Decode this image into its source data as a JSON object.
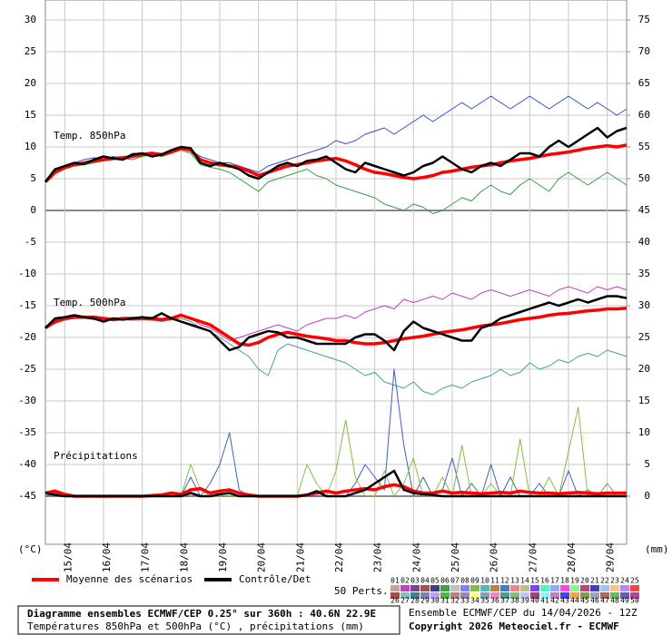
{
  "chart_data": {
    "type": "line",
    "annotations": [
      "Temp. 850hPa",
      "Temp. 500hPa",
      "Précipitations"
    ],
    "y_unit": "(°C)",
    "y2_unit": "(mm)",
    "categories": [
      null,
      null,
      "15/04",
      null,
      null,
      null,
      "16/04",
      null,
      null,
      null,
      "17/04",
      null,
      null,
      null,
      "18/04",
      null,
      null,
      null,
      "19/04",
      null,
      null,
      null,
      "20/04",
      null,
      null,
      null,
      "21/04",
      null,
      null,
      null,
      "22/04",
      null,
      null,
      null,
      "23/04",
      null,
      null,
      null,
      "24/04",
      null,
      null,
      null,
      "25/04",
      null,
      null,
      null,
      "26/04",
      null,
      null,
      null,
      "27/04",
      null,
      null,
      null,
      "28/04",
      null,
      null,
      null,
      "29/04",
      null,
      null
    ],
    "ylim": [
      -52.5,
      32.5
    ],
    "yticks": [
      -45,
      -40,
      -35,
      -30,
      -25,
      -20,
      -15,
      -10,
      -5,
      0,
      5,
      10,
      15,
      20,
      25,
      30
    ],
    "y2lim": [
      -7.5,
      77.5
    ],
    "y2ticks": [
      0,
      5,
      10,
      15,
      20,
      25,
      30,
      35,
      40,
      45,
      50,
      55,
      60,
      65,
      70,
      75
    ],
    "grid": true,
    "series": [
      {
        "color": "#3050d0",
        "values": [
          4.5,
          6.2,
          7,
          7.5,
          8,
          8.3,
          8,
          8.5,
          8.2,
          9,
          9,
          9.2,
          8.5,
          9,
          10,
          9.5,
          8.5,
          8,
          7.5,
          7.5,
          7,
          6.5,
          6,
          7,
          7.5,
          8,
          8.5,
          9,
          9.5,
          10,
          11,
          10.5,
          11,
          12,
          12.5,
          13,
          12,
          13,
          14,
          15,
          14,
          15,
          16,
          17,
          16,
          17,
          18,
          17,
          16,
          17,
          18,
          17,
          16,
          17,
          18,
          17,
          16,
          17,
          16,
          15,
          16
        ]
      },
      {
        "color": "#30a040",
        "values": [
          4.5,
          5.8,
          6.5,
          7,
          7.2,
          7.5,
          7.8,
          8,
          8.2,
          8,
          8.5,
          8.8,
          8.5,
          9,
          9.5,
          9,
          7.2,
          6.8,
          6.5,
          6,
          5,
          4,
          3,
          4.5,
          5,
          5.5,
          6,
          6.5,
          5.5,
          5,
          4,
          3.5,
          3,
          2.5,
          2,
          1,
          0.5,
          0,
          1,
          0.5,
          -0.5,
          0,
          1,
          2,
          1.5,
          3,
          4,
          3,
          2.5,
          4,
          5,
          4,
          3,
          5,
          6,
          5,
          4,
          5,
          6,
          5,
          4
        ]
      },
      {
        "color": "#c040c0",
        "values": [
          -18.5,
          -17.2,
          -16.8,
          -16.7,
          -17,
          -16.9,
          -17.2,
          -17.1,
          -17,
          -16.8,
          -17,
          -16.9,
          -17,
          -16.8,
          -16.3,
          -17,
          -18,
          -18.5,
          -19.5,
          -20.5,
          -20,
          -19.5,
          -19,
          -18.5,
          -18,
          -18.5,
          -19,
          -18,
          -17.5,
          -17,
          -17,
          -16.5,
          -17,
          -16,
          -15.5,
          -15,
          -15.5,
          -14,
          -14.5,
          -14,
          -13.5,
          -14,
          -13,
          -13.5,
          -14,
          -13,
          -12.5,
          -13,
          -13.5,
          -13,
          -12.5,
          -13,
          -13.5,
          -12.5,
          -12,
          -12.5,
          -13,
          -12,
          -12.5,
          -12,
          -12.5
        ]
      },
      {
        "color": "#40a0a0",
        "values": [
          -18.5,
          -17.8,
          -17.3,
          -17,
          -17,
          -17.2,
          -17,
          -17.4,
          -17.2,
          -17.3,
          -17.2,
          -17.3,
          -17.5,
          -17.2,
          -17,
          -17.5,
          -18.5,
          -19,
          -20,
          -21,
          -22,
          -23,
          -25,
          -26,
          -22,
          -21,
          -21.5,
          -22,
          -22.5,
          -23,
          -23.5,
          -24,
          -25,
          -26,
          -25.5,
          -27,
          -27.5,
          -28,
          -27,
          -28.5,
          -29,
          -28,
          -27.5,
          -28,
          -27,
          -26.5,
          -26,
          -25,
          -26,
          -25.5,
          -24,
          -25,
          -24.5,
          -23.5,
          -24,
          -23,
          -22.5,
          -23,
          -22,
          -22.5,
          -23
        ]
      },
      {
        "color": "#4060c0",
        "axis": "y2",
        "values": [
          0,
          0.5,
          0,
          0,
          0,
          0,
          0,
          0,
          0,
          0,
          0,
          0,
          0,
          0,
          0,
          3,
          0,
          2,
          5,
          10,
          1,
          0,
          0,
          0,
          0,
          0,
          0,
          0,
          0,
          0,
          0,
          0,
          2,
          5,
          3,
          1,
          20,
          8,
          0,
          3,
          0,
          1,
          6,
          0,
          2,
          0,
          5,
          0,
          3,
          0,
          0,
          2,
          0,
          0,
          4,
          0,
          1,
          0,
          2,
          0,
          0
        ]
      },
      {
        "color": "#80c040",
        "axis": "y2",
        "values": [
          0.5,
          1,
          0,
          0,
          0,
          0,
          0,
          0,
          0,
          0,
          0,
          0,
          0,
          0,
          0,
          5,
          1,
          0,
          0,
          0,
          0,
          0,
          0,
          0,
          0,
          0,
          0,
          5,
          2,
          0,
          4,
          12,
          3,
          0,
          0,
          4,
          0,
          2,
          6,
          0,
          0,
          3,
          0,
          8,
          0,
          0,
          2,
          0,
          0,
          9,
          0,
          0,
          3,
          0,
          7,
          14,
          0,
          0,
          2,
          0,
          0
        ]
      },
      {
        "name": "Moyenne des scénarios",
        "color": "#ff0000",
        "width": 3.5,
        "values": [
          4.5,
          6,
          6.8,
          7.2,
          7.5,
          7.8,
          8,
          8.2,
          8.3,
          8.5,
          8.8,
          9,
          8.8,
          9.2,
          9.8,
          9.5,
          8,
          7.5,
          7.2,
          7,
          6.8,
          6.2,
          5.5,
          6,
          6.5,
          7,
          7.2,
          7.5,
          7.8,
          8,
          8.2,
          7.8,
          7.2,
          6.5,
          6,
          5.8,
          5.5,
          5.2,
          5,
          5.2,
          5.5,
          6,
          6.2,
          6.5,
          6.8,
          7,
          7.2,
          7.5,
          7.8,
          8,
          8.2,
          8.5,
          8.8,
          9,
          9.2,
          9.5,
          9.8,
          10,
          10.2,
          10,
          10.3
        ]
      },
      {
        "name": "Contrôle/Det",
        "color": "#000000",
        "width": 2.5,
        "values": [
          4.5,
          6.5,
          7,
          7.5,
          7.3,
          8,
          8.5,
          8.2,
          8,
          8.8,
          9,
          8.5,
          8.8,
          9.5,
          10,
          9.8,
          7.5,
          7,
          7.5,
          7,
          6.5,
          5.5,
          5,
          6,
          7,
          7.5,
          7,
          7.8,
          8,
          8.5,
          7.5,
          6.5,
          6,
          7.5,
          7,
          6.5,
          6,
          5.5,
          6,
          7,
          7.5,
          8.5,
          7.5,
          6.5,
          6,
          7,
          7.5,
          7,
          8,
          9,
          9,
          8.5,
          10,
          11,
          10,
          11,
          12,
          13,
          11.5,
          12.5,
          13
        ]
      },
      {
        "color": "#ff0000",
        "width": 3.5,
        "values": [
          -18.5,
          -17.5,
          -17,
          -16.8,
          -16.8,
          -16.8,
          -17,
          -17.2,
          -17,
          -17,
          -17,
          -17,
          -17.2,
          -17,
          -16.5,
          -17,
          -17.5,
          -18,
          -19,
          -20,
          -21,
          -21.2,
          -20.8,
          -20,
          -19.5,
          -19.2,
          -19.5,
          -19.8,
          -20,
          -20.2,
          -20.5,
          -20.5,
          -20.8,
          -21,
          -21,
          -20.8,
          -20.5,
          -20.2,
          -20,
          -19.8,
          -19.5,
          -19.2,
          -19,
          -18.8,
          -18.5,
          -18.2,
          -18,
          -17.8,
          -17.5,
          -17.2,
          -17,
          -16.8,
          -16.5,
          -16.3,
          -16.2,
          -16,
          -15.8,
          -15.7,
          -15.5,
          -15.5,
          -15.4
        ]
      },
      {
        "color": "#000000",
        "width": 2.5,
        "values": [
          -18.5,
          -17,
          -16.8,
          -16.5,
          -16.8,
          -17,
          -17.5,
          -17,
          -17.2,
          -17,
          -16.8,
          -17,
          -16.2,
          -17,
          -17.5,
          -18,
          -18.5,
          -19,
          -20.5,
          -22,
          -21.5,
          -20,
          -19.5,
          -19,
          -19.2,
          -20,
          -20,
          -20.5,
          -21,
          -21,
          -21,
          -21,
          -20,
          -19.5,
          -19.5,
          -20.5,
          -22,
          -19,
          -17.5,
          -18.5,
          -19,
          -19.5,
          -20,
          -20.5,
          -20.5,
          -18.5,
          -18,
          -17,
          -16.5,
          -16,
          -15.5,
          -15,
          -14.5,
          -15,
          -14.5,
          -14,
          -14.5,
          -14,
          -13.5,
          -13.5,
          -13.8
        ]
      },
      {
        "color": "#ff0000",
        "width": 3.5,
        "axis": "y2",
        "values": [
          0.5,
          0.8,
          0.3,
          0,
          0,
          0,
          0,
          0,
          0,
          0,
          0,
          0.1,
          0.2,
          0.5,
          0.3,
          1,
          1.2,
          0.5,
          0.8,
          1,
          0.5,
          0.2,
          0,
          0,
          0,
          0,
          0,
          0.2,
          0.5,
          0.8,
          0.5,
          0.8,
          1,
          1.2,
          1,
          1.5,
          1.8,
          1.5,
          0.8,
          0.5,
          0.5,
          0.8,
          0.5,
          0.6,
          0.5,
          0.4,
          0.5,
          0.6,
          0.5,
          0.8,
          0.6,
          0.5,
          0.5,
          0.4,
          0.5,
          0.6,
          0.5,
          0.4,
          0.5,
          0.5,
          0.5
        ]
      },
      {
        "color": "#000000",
        "width": 2.5,
        "axis": "y2",
        "values": [
          0.5,
          0.2,
          0,
          0,
          0,
          0,
          0,
          0,
          0,
          0,
          0,
          0,
          0,
          0,
          0,
          0.5,
          0,
          0,
          0.3,
          0.5,
          0,
          0,
          0,
          0,
          0,
          0,
          0,
          0.2,
          0.8,
          0,
          0,
          0,
          0.5,
          1,
          2,
          3,
          4,
          1,
          0.5,
          0.3,
          0.2,
          0,
          0,
          0,
          0,
          0,
          0,
          0,
          0,
          0,
          0,
          0,
          0,
          0,
          0,
          0,
          0,
          0,
          0,
          0,
          0
        ]
      }
    ],
    "perturbations": {
      "label": "50 Perts.",
      "members": [
        "01",
        "02",
        "03",
        "04",
        "05",
        "06",
        "07",
        "08",
        "09",
        "10",
        "11",
        "12",
        "13",
        "14",
        "15",
        "16",
        "17",
        "18",
        "19",
        "20",
        "21",
        "22",
        "23",
        "24",
        "25",
        "26",
        "27",
        "28",
        "29",
        "30",
        "31",
        "32",
        "33",
        "34",
        "35",
        "36",
        "37",
        "38",
        "39",
        "40",
        "41",
        "42",
        "43",
        "44",
        "45",
        "46",
        "47",
        "48",
        "49",
        "50"
      ],
      "colors": [
        "#c8a0a0",
        "#c040c0",
        "#8040a0",
        "#a05050",
        "#404080",
        "#40a040",
        "#c0c0c0",
        "#8080ff",
        "#80c040",
        "#40c0c0",
        "#c08040",
        "#4080c0",
        "#ff8080",
        "#c0c080",
        "#8040ff",
        "#40ffc0",
        "#a0a0ff",
        "#ff40ff",
        "#80ff80",
        "#c04080",
        "#4040c0",
        "#a0c0ff",
        "#ffc080",
        "#c080ff",
        "#ff4040",
        "#c04040",
        "#80c0c0",
        "#4080a0",
        "#8080c0",
        "#c0a0ff",
        "#40c040",
        "#c08080",
        "#a080c0",
        "#ffff80",
        "#80a0c0",
        "#ff80c0",
        "#40a0a0",
        "#80c080",
        "#c0c0ff",
        "#a04080",
        "#80ffff",
        "#c080c0",
        "#4040ff",
        "#ffa040",
        "#80a040",
        "#a0a0c0",
        "#c06060",
        "#60c060",
        "#6060c0",
        "#c040a0"
      ]
    },
    "footer": {
      "title": "Diagramme ensembles ECMWF/CEP 0.25° sur 360h : 40.6N 22.9E",
      "subtitle": "Températures 850hPa et 500hPa (°C) , précipitations (mm)",
      "run": "Ensemble ECMWF/CEP du 14/04/2026 - 12Z",
      "copyright": "Copyright 2026 Meteociel.fr - ECMWF"
    }
  }
}
